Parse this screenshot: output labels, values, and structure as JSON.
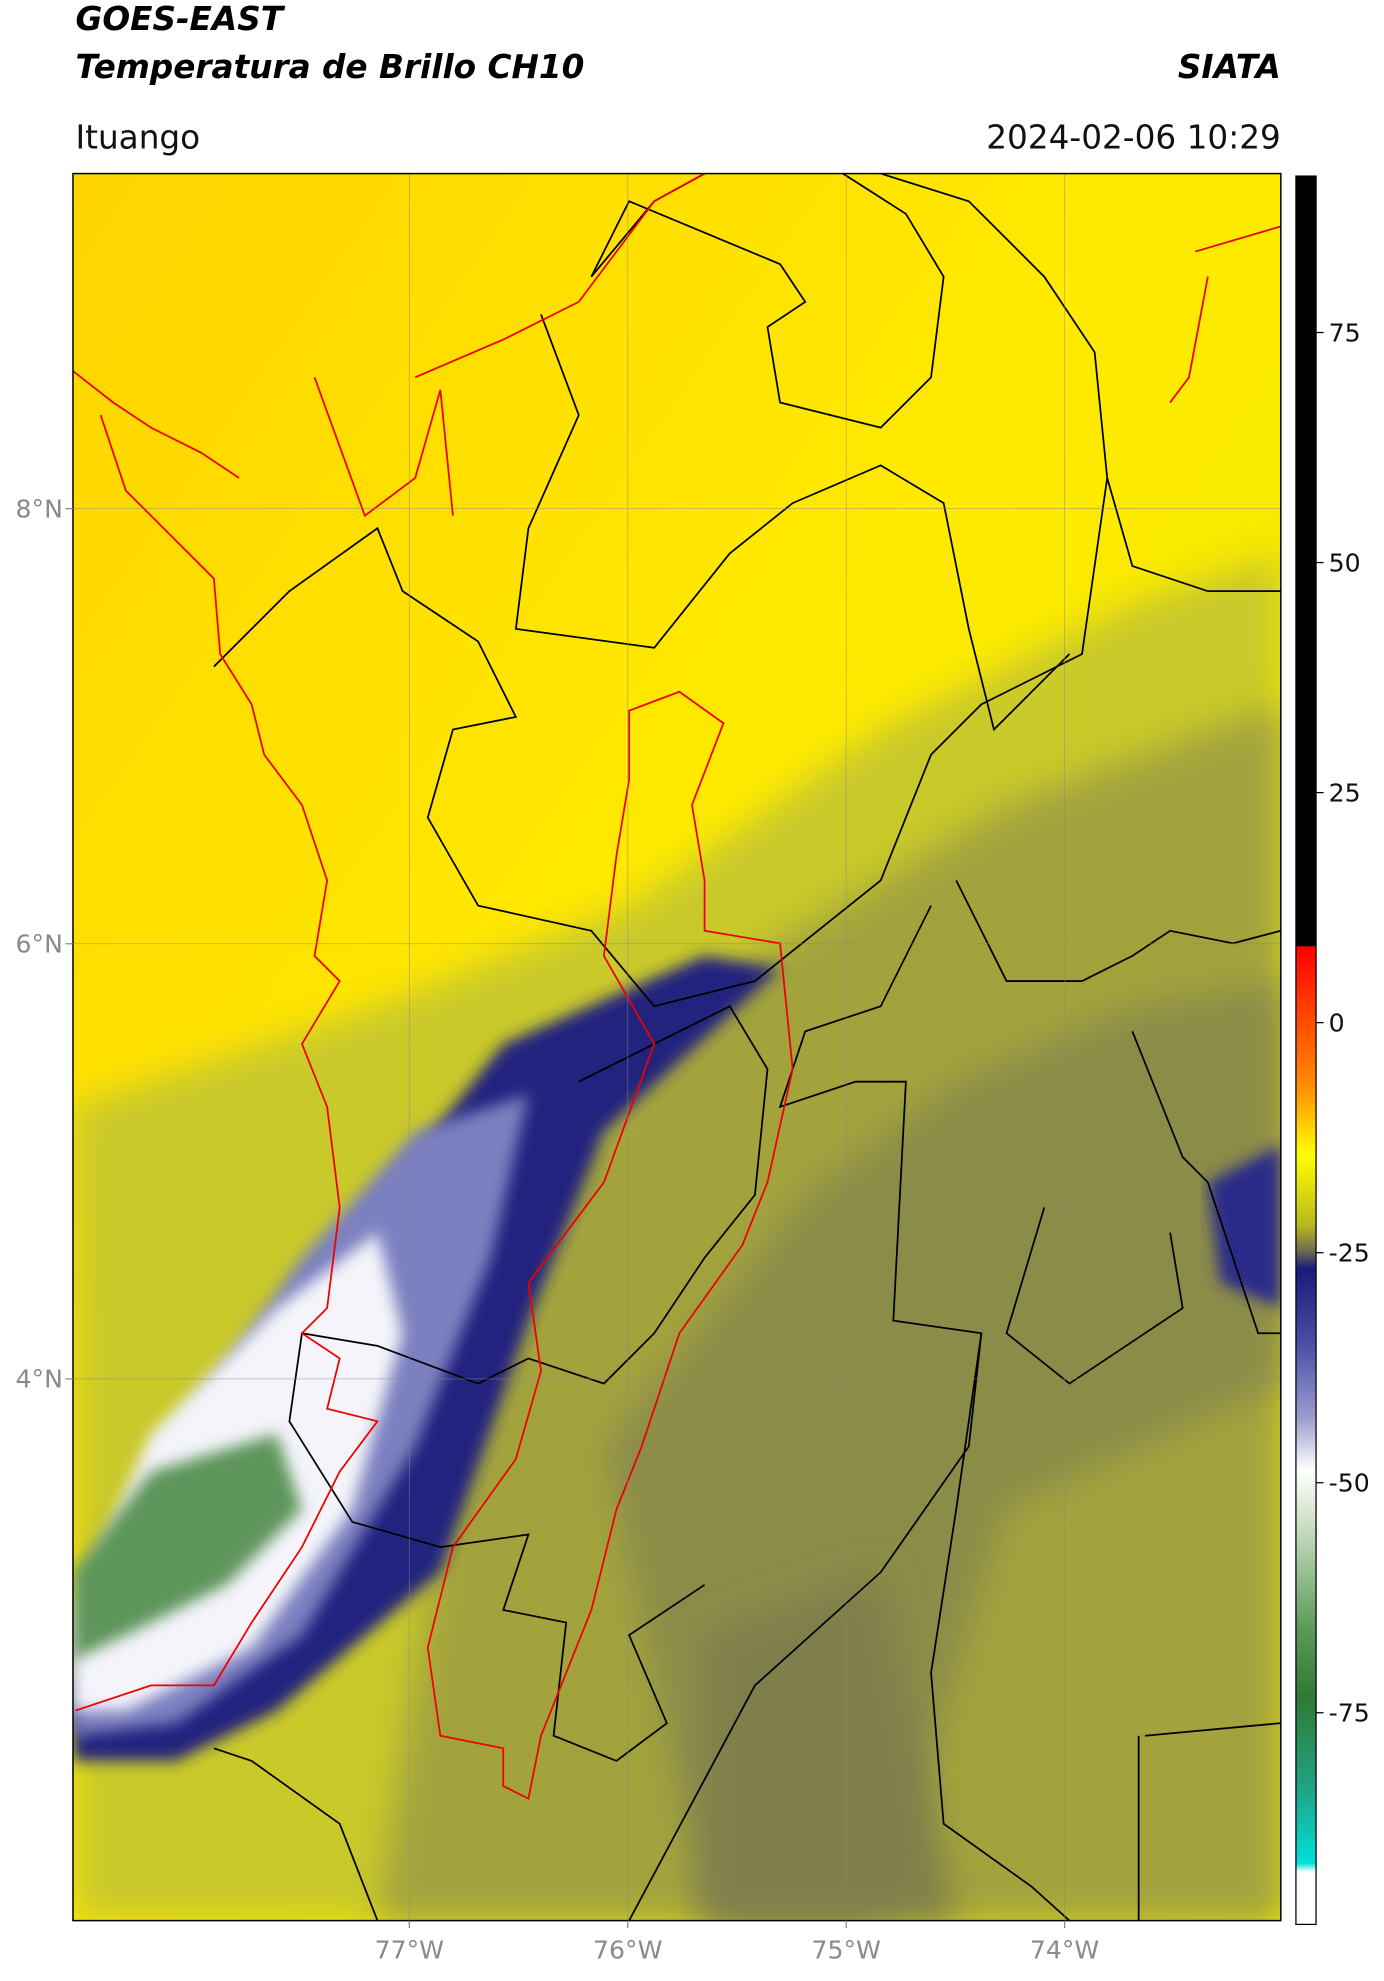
{
  "header": {
    "title": "GOES-EAST",
    "subtitle": "Temperatura de Brillo CH10",
    "brand": "SIATA",
    "location": "Ituango",
    "datetime": "2024-02-06 10:29"
  },
  "map": {
    "xlim": [
      -78.54,
      -73.01
    ],
    "ylim": [
      1.51,
      9.54
    ],
    "xticks": [
      {
        "value": -77,
        "label": "77°W"
      },
      {
        "value": -76,
        "label": "76°W"
      },
      {
        "value": -75,
        "label": "75°W"
      },
      {
        "value": -74,
        "label": "74°W"
      }
    ],
    "yticks": [
      {
        "value": 8,
        "label": "8°N"
      },
      {
        "value": 6,
        "label": "6°N"
      },
      {
        "value": 4,
        "label": "4°N"
      }
    ],
    "grid": true
  },
  "colorbar": {
    "lim": [
      -98,
      92
    ],
    "ticks": [
      75,
      50,
      25,
      0,
      -25,
      -50,
      -75
    ]
  }
}
